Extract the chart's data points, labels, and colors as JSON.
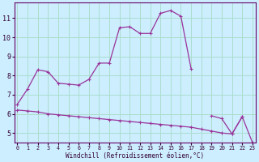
{
  "xlabel": "Windchill (Refroidissement éolien,°C)",
  "bg_color": "#cceeff",
  "grid_color": "#aaddcc",
  "line_color": "#993399",
  "line1_x": [
    0,
    1,
    2,
    3,
    4,
    5,
    6,
    7,
    8,
    9,
    10,
    11,
    12,
    13,
    14,
    15,
    16,
    17,
    18,
    19,
    20,
    21,
    22,
    23
  ],
  "line1_y": [
    6.5,
    7.3,
    8.3,
    8.2,
    7.6,
    7.55,
    7.5,
    7.8,
    8.65,
    8.65,
    10.5,
    10.55,
    10.2,
    10.2,
    11.25,
    11.4,
    11.1,
    8.35,
    null,
    5.9,
    5.75,
    4.95,
    5.85,
    null
  ],
  "line2_x": [
    0,
    1,
    2,
    3,
    4,
    5,
    6,
    7,
    8,
    9,
    10,
    11,
    12,
    13,
    14,
    15,
    16,
    17,
    18,
    19,
    20,
    21,
    22,
    23
  ],
  "line2_y": [
    6.5,
    null,
    null,
    null,
    null,
    null,
    null,
    null,
    null,
    null,
    null,
    null,
    null,
    null,
    null,
    null,
    null,
    null,
    null,
    null,
    null,
    null,
    null,
    4.55
  ],
  "line3_x": [
    0,
    1,
    2,
    3,
    4,
    5,
    6,
    7,
    8,
    9,
    10,
    11,
    12,
    13,
    14,
    15,
    16,
    17,
    18,
    19,
    20,
    21,
    22,
    23
  ],
  "line3_y": [
    6.2,
    6.15,
    6.1,
    6.0,
    5.95,
    5.9,
    5.85,
    5.8,
    5.75,
    5.7,
    5.65,
    5.6,
    5.55,
    5.5,
    5.45,
    5.4,
    5.35,
    5.3,
    5.2,
    5.1,
    5.0,
    4.95,
    5.85,
    4.5
  ],
  "xlim": [
    -0.3,
    23.3
  ],
  "ylim": [
    4.5,
    11.8
  ],
  "yticks": [
    5,
    6,
    7,
    8,
    9,
    10,
    11
  ],
  "xticks": [
    0,
    1,
    2,
    3,
    4,
    5,
    6,
    7,
    8,
    9,
    10,
    11,
    12,
    13,
    14,
    15,
    16,
    17,
    18,
    19,
    20,
    21,
    22,
    23
  ],
  "marker": "+"
}
